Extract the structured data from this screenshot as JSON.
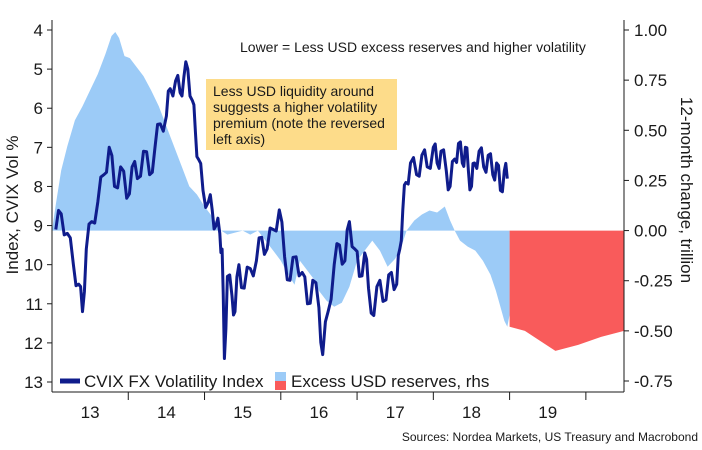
{
  "chart_data": {
    "type": "line",
    "title": "",
    "annotation_top": "Lower = Less USD excess reserves and higher volatility",
    "annotation_box": [
      "Less USD liquidity around",
      "suggests a higher volatility",
      "premium (note the reversed",
      "left axis)"
    ],
    "annotation_box_color": "#fddc8a",
    "source": "Sources: Nordea Markets, US Treasury and Macrobond",
    "left_axis": {
      "label": "Index, CVIX Vol %",
      "ylim": [
        4,
        13
      ],
      "reversed": true,
      "ticks": [
        4,
        5,
        6,
        7,
        8,
        9,
        10,
        11,
        12,
        13
      ]
    },
    "right_axis": {
      "label": "12-month change, trillion",
      "ylim": [
        -0.75,
        1.0
      ],
      "ticks": [
        "1.00",
        "0.75",
        "0.50",
        "0.25",
        "0.00",
        "-0.25",
        "-0.50",
        "-0.75"
      ]
    },
    "x_axis": {
      "range": [
        2012.5,
        2020.0
      ],
      "tick_labels": [
        "13",
        "14",
        "15",
        "16",
        "17",
        "18",
        "19"
      ],
      "tick_label_positions": [
        2013.0,
        2014.0,
        2015.0,
        2016.0,
        2017.0,
        2018.0,
        2019.0
      ],
      "year_boundaries": [
        2013.5,
        2014.5,
        2015.5,
        2016.5,
        2017.5,
        2018.5,
        2019.5
      ]
    },
    "legend": {
      "placement": "bottom-left",
      "entries": [
        {
          "label": "CVIX FX Volatility Index",
          "color": "#0f1c8c",
          "kind": "line"
        },
        {
          "label": "",
          "color": "#9ccbf7",
          "kind": "swatch"
        },
        {
          "label": "Excess USD reserves, rhs",
          "color": "#f95b5b",
          "kind": "swatch"
        }
      ]
    },
    "series": [
      {
        "name": "CVIX FX Volatility Index",
        "axis": "left",
        "color": "#0f1c8c",
        "points": [
          [
            2012.55,
            9.1
          ],
          [
            2012.62,
            8.7
          ],
          [
            2012.7,
            9.2
          ],
          [
            2012.78,
            10.0
          ],
          [
            2012.85,
            10.5
          ],
          [
            2012.9,
            11.2
          ],
          [
            2012.95,
            9.6
          ],
          [
            2013.02,
            8.9
          ],
          [
            2013.1,
            8.4
          ],
          [
            2013.18,
            7.7
          ],
          [
            2013.25,
            7.0
          ],
          [
            2013.32,
            8.0
          ],
          [
            2013.4,
            7.5
          ],
          [
            2013.48,
            8.3
          ],
          [
            2013.55,
            7.5
          ],
          [
            2013.62,
            7.8
          ],
          [
            2013.7,
            7.1
          ],
          [
            2013.78,
            7.7
          ],
          [
            2013.85,
            7.0
          ],
          [
            2013.92,
            6.4
          ],
          [
            2014.0,
            6.2
          ],
          [
            2014.05,
            5.5
          ],
          [
            2014.12,
            5.3
          ],
          [
            2014.18,
            5.6
          ],
          [
            2014.23,
            5.2
          ],
          [
            2014.28,
            5.0
          ],
          [
            2014.34,
            5.8
          ],
          [
            2014.38,
            6.6
          ],
          [
            2014.42,
            7.3
          ],
          [
            2014.48,
            8.1
          ],
          [
            2014.55,
            8.4
          ],
          [
            2014.6,
            8.6
          ],
          [
            2014.65,
            9.0
          ],
          [
            2014.7,
            9.2
          ],
          [
            2014.73,
            9.6
          ],
          [
            2014.76,
            12.4
          ],
          [
            2014.8,
            10.3
          ],
          [
            2014.86,
            10.8
          ],
          [
            2014.9,
            11.2
          ],
          [
            2014.95,
            10.0
          ],
          [
            2015.02,
            10.6
          ],
          [
            2015.1,
            10.1
          ],
          [
            2015.18,
            9.9
          ],
          [
            2015.25,
            9.3
          ],
          [
            2015.32,
            9.6
          ],
          [
            2015.4,
            9.1
          ],
          [
            2015.48,
            8.6
          ],
          [
            2015.55,
            9.8
          ],
          [
            2015.62,
            10.4
          ],
          [
            2015.7,
            9.8
          ],
          [
            2015.78,
            10.2
          ],
          [
            2015.85,
            11.0
          ],
          [
            2015.92,
            10.4
          ],
          [
            2016.0,
            11.1
          ],
          [
            2016.05,
            12.3
          ],
          [
            2016.12,
            11.2
          ],
          [
            2016.2,
            10.0
          ],
          [
            2016.27,
            9.5
          ],
          [
            2016.34,
            9.9
          ],
          [
            2016.4,
            8.9
          ],
          [
            2016.47,
            9.6
          ],
          [
            2016.53,
            10.3
          ],
          [
            2016.6,
            9.7
          ],
          [
            2016.65,
            10.6
          ],
          [
            2016.72,
            11.3
          ],
          [
            2016.8,
            10.4
          ],
          [
            2016.88,
            10.9
          ],
          [
            2016.95,
            10.2
          ],
          [
            2017.02,
            10.5
          ],
          [
            2017.06,
            9.6
          ],
          [
            2017.1,
            8.6
          ],
          [
            2017.14,
            7.9
          ],
          [
            2017.2,
            7.4
          ],
          [
            2017.28,
            7.7
          ],
          [
            2017.35,
            7.2
          ],
          [
            2017.42,
            7.5
          ],
          [
            2017.5,
            7.0
          ],
          [
            2017.55,
            7.4
          ],
          [
            2017.6,
            7.1
          ],
          [
            2017.67,
            7.6
          ],
          [
            2017.72,
            8.0
          ],
          [
            2017.78,
            7.3
          ],
          [
            2017.83,
            6.9
          ],
          [
            2017.88,
            7.4
          ],
          [
            2017.92,
            7.0
          ],
          [
            2017.96,
            7.6
          ],
          [
            2018.0,
            8.0
          ],
          [
            2018.04,
            7.4
          ],
          [
            2018.1,
            7.1
          ],
          [
            2018.16,
            7.5
          ],
          [
            2018.22,
            7.2
          ],
          [
            2018.28,
            7.7
          ],
          [
            2018.33,
            7.4
          ],
          [
            2018.38,
            8.1
          ],
          [
            2018.43,
            7.6
          ],
          [
            2018.47,
            7.8
          ]
        ]
      },
      {
        "name": "",
        "axis": "right",
        "color": "#9ccbf7",
        "kind": "area",
        "points": [
          [
            2012.5,
            0.0
          ],
          [
            2012.55,
            0.13
          ],
          [
            2012.62,
            0.3
          ],
          [
            2012.7,
            0.42
          ],
          [
            2012.8,
            0.55
          ],
          [
            2012.9,
            0.62
          ],
          [
            2013.0,
            0.7
          ],
          [
            2013.1,
            0.78
          ],
          [
            2013.2,
            0.88
          ],
          [
            2013.28,
            0.97
          ],
          [
            2013.33,
            0.99
          ],
          [
            2013.38,
            0.96
          ],
          [
            2013.45,
            0.87
          ],
          [
            2013.52,
            0.86
          ],
          [
            2013.6,
            0.82
          ],
          [
            2013.7,
            0.77
          ],
          [
            2013.8,
            0.7
          ],
          [
            2013.9,
            0.62
          ],
          [
            2014.0,
            0.52
          ],
          [
            2014.1,
            0.42
          ],
          [
            2014.2,
            0.32
          ],
          [
            2014.3,
            0.22
          ],
          [
            2014.4,
            0.18
          ],
          [
            2014.5,
            0.12
          ],
          [
            2014.58,
            0.08
          ],
          [
            2014.65,
            0.04
          ],
          [
            2014.72,
            0.0
          ],
          [
            2014.8,
            -0.02
          ],
          [
            2014.9,
            -0.01
          ],
          [
            2015.0,
            0.0
          ],
          [
            2015.1,
            -0.02
          ],
          [
            2015.2,
            0.0
          ],
          [
            2015.3,
            -0.05
          ],
          [
            2015.4,
            -0.1
          ],
          [
            2015.5,
            -0.15
          ],
          [
            2015.6,
            -0.22
          ],
          [
            2015.68,
            -0.27
          ],
          [
            2015.75,
            -0.15
          ],
          [
            2015.85,
            -0.2
          ],
          [
            2015.95,
            -0.25
          ],
          [
            2016.0,
            -0.3
          ],
          [
            2016.1,
            -0.35
          ],
          [
            2016.2,
            -0.38
          ],
          [
            2016.3,
            -0.36
          ],
          [
            2016.4,
            -0.28
          ],
          [
            2016.5,
            -0.15
          ],
          [
            2016.6,
            -0.1
          ],
          [
            2016.7,
            -0.05
          ],
          [
            2016.8,
            -0.1
          ],
          [
            2016.9,
            -0.18
          ],
          [
            2017.0,
            -0.14
          ],
          [
            2017.08,
            -0.08
          ],
          [
            2017.15,
            0.0
          ],
          [
            2017.25,
            0.05
          ],
          [
            2017.35,
            0.08
          ],
          [
            2017.45,
            0.1
          ],
          [
            2017.55,
            0.09
          ],
          [
            2017.65,
            0.12
          ],
          [
            2017.72,
            0.05
          ],
          [
            2017.78,
            0.0
          ],
          [
            2017.85,
            -0.05
          ],
          [
            2017.95,
            -0.08
          ],
          [
            2018.05,
            -0.1
          ],
          [
            2018.15,
            -0.15
          ],
          [
            2018.25,
            -0.22
          ],
          [
            2018.32,
            -0.3
          ],
          [
            2018.38,
            -0.38
          ],
          [
            2018.43,
            -0.45
          ],
          [
            2018.47,
            -0.48
          ],
          [
            2018.5,
            -0.42
          ]
        ]
      },
      {
        "name": "Excess USD reserves, rhs",
        "axis": "right",
        "color": "#f95b5b",
        "kind": "area",
        "points": [
          [
            2018.5,
            0.0
          ],
          [
            2018.5,
            -0.48
          ],
          [
            2018.7,
            -0.5
          ],
          [
            2018.9,
            -0.55
          ],
          [
            2019.1,
            -0.6
          ],
          [
            2019.4,
            -0.57
          ],
          [
            2019.7,
            -0.53
          ],
          [
            2020.0,
            -0.5
          ],
          [
            2020.0,
            0.0
          ]
        ]
      }
    ]
  }
}
